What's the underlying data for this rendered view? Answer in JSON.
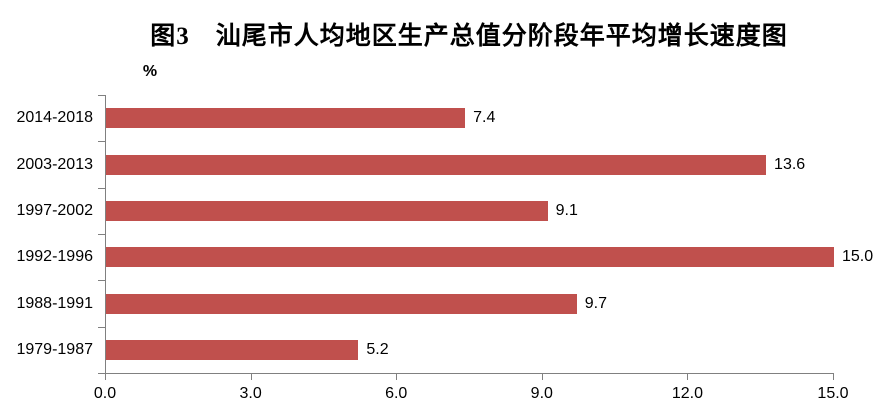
{
  "title": "图3　汕尾市人均地区生产总值分阶段年平均增长速度图",
  "unit_label": "%",
  "colors": {
    "bar": "#C0504D",
    "axis": "#808080",
    "text": "#000000",
    "background": "#FFFFFF"
  },
  "chart_data": {
    "type": "bar",
    "orientation": "horizontal",
    "title": "图3　汕尾市人均地区生产总值分阶段年平均增长速度图",
    "unit": "%",
    "categories": [
      "2014-2018",
      "2003-2013",
      "1997-2002",
      "1992-1996",
      "1988-1991",
      "1979-1987"
    ],
    "values": [
      7.4,
      13.6,
      9.1,
      15.0,
      9.7,
      5.2
    ],
    "value_labels": [
      "7.4",
      "13.6",
      "9.1",
      "15.0",
      "9.7",
      "5.2"
    ],
    "xlim": [
      0,
      15
    ],
    "xticks": [
      0,
      3,
      6,
      9,
      12,
      15
    ],
    "xtick_labels": [
      "0.0",
      "3.0",
      "6.0",
      "9.0",
      "12.0",
      "15.0"
    ],
    "grid": false,
    "legend": false,
    "data_labels_position": "outside-end",
    "bar_color": "#C0504D"
  }
}
